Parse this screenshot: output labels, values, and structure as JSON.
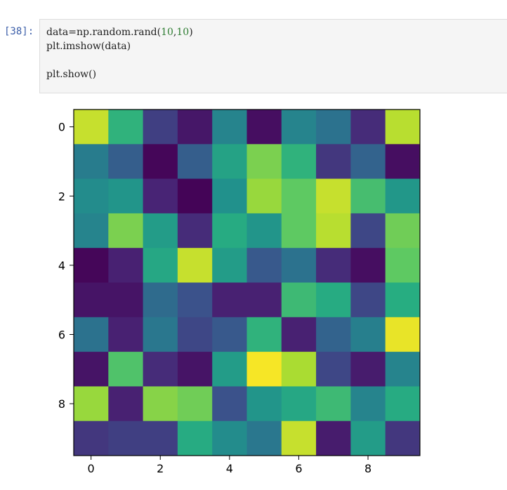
{
  "cell": {
    "prompt": "[38]:",
    "code_line1_pre": "data=np.random.rand(",
    "code_line1_arg1": "10",
    "code_line1_comma": ",",
    "code_line1_arg2": "10",
    "code_line1_post": ")",
    "code_line2": "plt.imshow(data)",
    "code_line3": "",
    "code_line4": "plt.show()"
  },
  "chart_data": {
    "type": "heatmap",
    "colormap": "viridis",
    "rows": 10,
    "cols": 10,
    "xticks": [
      0,
      2,
      4,
      6,
      8
    ],
    "yticks": [
      0,
      2,
      4,
      6,
      8
    ],
    "values": [
      [
        0.92,
        0.65,
        0.2,
        0.08,
        0.45,
        0.05,
        0.45,
        0.38,
        0.15,
        0.9
      ],
      [
        0.42,
        0.3,
        0.02,
        0.3,
        0.58,
        0.8,
        0.65,
        0.18,
        0.32,
        0.05
      ],
      [
        0.48,
        0.52,
        0.13,
        0.01,
        0.5,
        0.85,
        0.75,
        0.92,
        0.7,
        0.53
      ],
      [
        0.45,
        0.8,
        0.55,
        0.15,
        0.62,
        0.52,
        0.75,
        0.9,
        0.22,
        0.78
      ],
      [
        0.02,
        0.12,
        0.6,
        0.92,
        0.55,
        0.28,
        0.38,
        0.15,
        0.05,
        0.75
      ],
      [
        0.07,
        0.07,
        0.35,
        0.25,
        0.12,
        0.12,
        0.68,
        0.62,
        0.22,
        0.63
      ],
      [
        0.38,
        0.12,
        0.4,
        0.22,
        0.28,
        0.65,
        0.12,
        0.32,
        0.43,
        0.97
      ],
      [
        0.07,
        0.72,
        0.15,
        0.07,
        0.55,
        0.99,
        0.88,
        0.22,
        0.1,
        0.45
      ],
      [
        0.85,
        0.12,
        0.82,
        0.78,
        0.25,
        0.52,
        0.6,
        0.68,
        0.45,
        0.62
      ],
      [
        0.18,
        0.2,
        0.2,
        0.62,
        0.48,
        0.4,
        0.92,
        0.1,
        0.55,
        0.18
      ]
    ]
  }
}
